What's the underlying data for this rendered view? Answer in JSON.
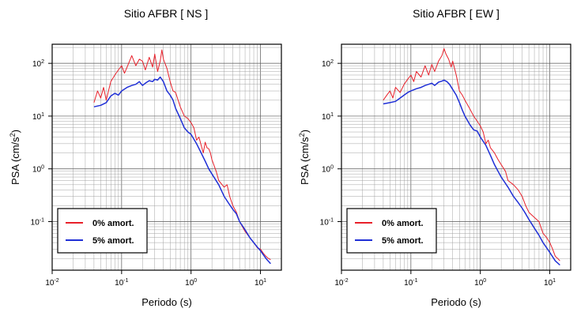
{
  "chart_data": [
    {
      "type": "line",
      "title": "Sitio AFBR [ NS ]",
      "xlabel": "Periodo (s)",
      "ylabel_main": "PSA (cm/s",
      "ylabel_sup": "2",
      "ylabel_end": ")",
      "xscale": "log",
      "yscale": "log",
      "xlim": [
        0.01,
        20
      ],
      "ylim": [
        0.012,
        230
      ],
      "grid": true,
      "legend_position": "bottom-left",
      "x_ticks": [
        {
          "base": "10",
          "exp": "-2"
        },
        {
          "base": "10",
          "exp": "-1"
        },
        {
          "base": "10",
          "exp": "0"
        },
        {
          "base": "10",
          "exp": "1"
        }
      ],
      "y_ticks": [
        {
          "base": "10",
          "exp": "-1"
        },
        {
          "base": "10",
          "exp": "0"
        },
        {
          "base": "10",
          "exp": "1"
        },
        {
          "base": "10",
          "exp": "2"
        }
      ],
      "series": [
        {
          "name": "0% amort.",
          "color": "#e8202a",
          "points": [
            [
              0.04,
              18
            ],
            [
              0.045,
              30
            ],
            [
              0.05,
              22
            ],
            [
              0.055,
              35
            ],
            [
              0.06,
              20
            ],
            [
              0.07,
              45
            ],
            [
              0.08,
              60
            ],
            [
              0.09,
              75
            ],
            [
              0.1,
              90
            ],
            [
              0.11,
              65
            ],
            [
              0.12,
              85
            ],
            [
              0.14,
              140
            ],
            [
              0.16,
              90
            ],
            [
              0.18,
              120
            ],
            [
              0.2,
              110
            ],
            [
              0.22,
              75
            ],
            [
              0.25,
              130
            ],
            [
              0.28,
              85
            ],
            [
              0.3,
              150
            ],
            [
              0.33,
              70
            ],
            [
              0.36,
              110
            ],
            [
              0.38,
              180
            ],
            [
              0.4,
              120
            ],
            [
              0.45,
              80
            ],
            [
              0.5,
              45
            ],
            [
              0.55,
              30
            ],
            [
              0.6,
              28
            ],
            [
              0.7,
              15
            ],
            [
              0.8,
              10
            ],
            [
              0.9,
              9
            ],
            [
              1.0,
              7.5
            ],
            [
              1.1,
              6.0
            ],
            [
              1.2,
              3.5
            ],
            [
              1.3,
              4.0
            ],
            [
              1.4,
              2.8
            ],
            [
              1.5,
              2.0
            ],
            [
              1.6,
              3.2
            ],
            [
              1.7,
              2.5
            ],
            [
              1.8,
              2.4
            ],
            [
              1.9,
              2.0
            ],
            [
              2.0,
              1.5
            ],
            [
              2.3,
              0.9
            ],
            [
              2.5,
              0.6
            ],
            [
              2.8,
              0.5
            ],
            [
              3.0,
              0.45
            ],
            [
              3.3,
              0.5
            ],
            [
              3.6,
              0.3
            ],
            [
              4.0,
              0.2
            ],
            [
              4.5,
              0.15
            ],
            [
              5.0,
              0.1
            ],
            [
              5.5,
              0.08
            ],
            [
              6.0,
              0.065
            ],
            [
              7.0,
              0.05
            ],
            [
              8.0,
              0.04
            ],
            [
              9.0,
              0.032
            ],
            [
              10.0,
              0.03
            ],
            [
              11.0,
              0.025
            ],
            [
              12.0,
              0.022
            ],
            [
              13.0,
              0.02
            ],
            [
              14.0,
              0.019
            ]
          ]
        },
        {
          "name": "5% amort.",
          "color": "#1f2fd6",
          "points": [
            [
              0.04,
              15
            ],
            [
              0.05,
              16
            ],
            [
              0.06,
              18
            ],
            [
              0.07,
              24
            ],
            [
              0.08,
              27
            ],
            [
              0.09,
              25
            ],
            [
              0.1,
              30
            ],
            [
              0.12,
              35
            ],
            [
              0.14,
              38
            ],
            [
              0.16,
              40
            ],
            [
              0.18,
              45
            ],
            [
              0.2,
              38
            ],
            [
              0.22,
              42
            ],
            [
              0.25,
              47
            ],
            [
              0.28,
              45
            ],
            [
              0.3,
              50
            ],
            [
              0.33,
              48
            ],
            [
              0.36,
              55
            ],
            [
              0.4,
              45
            ],
            [
              0.45,
              30
            ],
            [
              0.5,
              25
            ],
            [
              0.55,
              20
            ],
            [
              0.6,
              14
            ],
            [
              0.7,
              9
            ],
            [
              0.8,
              6.0
            ],
            [
              0.9,
              5.0
            ],
            [
              1.0,
              4.5
            ],
            [
              1.2,
              3.0
            ],
            [
              1.4,
              2.0
            ],
            [
              1.6,
              1.4
            ],
            [
              1.8,
              1.0
            ],
            [
              2.0,
              0.8
            ],
            [
              2.5,
              0.5
            ],
            [
              3.0,
              0.3
            ],
            [
              3.5,
              0.22
            ],
            [
              4.0,
              0.17
            ],
            [
              4.5,
              0.14
            ],
            [
              5.0,
              0.1
            ],
            [
              6.0,
              0.07
            ],
            [
              7.0,
              0.05
            ],
            [
              8.0,
              0.04
            ],
            [
              9.0,
              0.033
            ],
            [
              10.0,
              0.028
            ],
            [
              12.0,
              0.02
            ],
            [
              14.0,
              0.016
            ]
          ]
        }
      ]
    },
    {
      "type": "line",
      "title": "Sitio AFBR [ EW ]",
      "xlabel": "Periodo (s)",
      "ylabel_main": "PSA (cm/s",
      "ylabel_sup": "2",
      "ylabel_end": ")",
      "xscale": "log",
      "yscale": "log",
      "xlim": [
        0.01,
        20
      ],
      "ylim": [
        0.012,
        230
      ],
      "grid": true,
      "legend_position": "bottom-left",
      "x_ticks": [
        {
          "base": "10",
          "exp": "-2"
        },
        {
          "base": "10",
          "exp": "-1"
        },
        {
          "base": "10",
          "exp": "0"
        },
        {
          "base": "10",
          "exp": "1"
        }
      ],
      "y_ticks": [
        {
          "base": "10",
          "exp": "-1"
        },
        {
          "base": "10",
          "exp": "0"
        },
        {
          "base": "10",
          "exp": "1"
        },
        {
          "base": "10",
          "exp": "2"
        }
      ],
      "series": [
        {
          "name": "0% amort.",
          "color": "#e8202a",
          "points": [
            [
              0.04,
              20
            ],
            [
              0.045,
              25
            ],
            [
              0.05,
              30
            ],
            [
              0.055,
              22
            ],
            [
              0.06,
              35
            ],
            [
              0.07,
              28
            ],
            [
              0.08,
              40
            ],
            [
              0.09,
              50
            ],
            [
              0.1,
              60
            ],
            [
              0.11,
              45
            ],
            [
              0.12,
              70
            ],
            [
              0.14,
              55
            ],
            [
              0.16,
              90
            ],
            [
              0.18,
              60
            ],
            [
              0.2,
              95
            ],
            [
              0.22,
              70
            ],
            [
              0.25,
              110
            ],
            [
              0.28,
              140
            ],
            [
              0.3,
              190
            ],
            [
              0.32,
              150
            ],
            [
              0.35,
              120
            ],
            [
              0.38,
              85
            ],
            [
              0.4,
              110
            ],
            [
              0.45,
              60
            ],
            [
              0.5,
              30
            ],
            [
              0.55,
              25
            ],
            [
              0.6,
              20
            ],
            [
              0.7,
              14
            ],
            [
              0.8,
              10
            ],
            [
              0.9,
              8
            ],
            [
              1.0,
              6.5
            ],
            [
              1.1,
              5.0
            ],
            [
              1.2,
              3.0
            ],
            [
              1.3,
              3.5
            ],
            [
              1.4,
              2.5
            ],
            [
              1.6,
              2.0
            ],
            [
              1.8,
              1.5
            ],
            [
              2.0,
              1.2
            ],
            [
              2.3,
              0.9
            ],
            [
              2.5,
              0.6
            ],
            [
              3.0,
              0.5
            ],
            [
              3.5,
              0.4
            ],
            [
              4.0,
              0.3
            ],
            [
              4.5,
              0.2
            ],
            [
              5.0,
              0.15
            ],
            [
              6.0,
              0.12
            ],
            [
              7.0,
              0.1
            ],
            [
              8.0,
              0.06
            ],
            [
              9.0,
              0.05
            ],
            [
              10.0,
              0.04
            ],
            [
              11.0,
              0.03
            ],
            [
              12.0,
              0.022
            ],
            [
              13.0,
              0.02
            ],
            [
              14.0,
              0.018
            ]
          ]
        },
        {
          "name": "5% amort.",
          "color": "#1f2fd6",
          "points": [
            [
              0.04,
              17
            ],
            [
              0.05,
              18
            ],
            [
              0.06,
              19
            ],
            [
              0.07,
              22
            ],
            [
              0.08,
              25
            ],
            [
              0.09,
              28
            ],
            [
              0.1,
              30
            ],
            [
              0.12,
              33
            ],
            [
              0.14,
              35
            ],
            [
              0.16,
              38
            ],
            [
              0.18,
              40
            ],
            [
              0.2,
              42
            ],
            [
              0.22,
              38
            ],
            [
              0.25,
              44
            ],
            [
              0.28,
              46
            ],
            [
              0.3,
              48
            ],
            [
              0.33,
              45
            ],
            [
              0.36,
              40
            ],
            [
              0.4,
              32
            ],
            [
              0.45,
              25
            ],
            [
              0.5,
              18
            ],
            [
              0.55,
              13
            ],
            [
              0.6,
              10
            ],
            [
              0.7,
              7
            ],
            [
              0.8,
              5.5
            ],
            [
              0.9,
              5.2
            ],
            [
              1.0,
              4.0
            ],
            [
              1.2,
              2.8
            ],
            [
              1.4,
              1.8
            ],
            [
              1.6,
              1.2
            ],
            [
              1.8,
              0.9
            ],
            [
              2.0,
              0.7
            ],
            [
              2.5,
              0.45
            ],
            [
              3.0,
              0.3
            ],
            [
              3.5,
              0.23
            ],
            [
              4.0,
              0.18
            ],
            [
              4.5,
              0.14
            ],
            [
              5.0,
              0.11
            ],
            [
              6.0,
              0.075
            ],
            [
              7.0,
              0.055
            ],
            [
              8.0,
              0.04
            ],
            [
              9.0,
              0.032
            ],
            [
              10.0,
              0.026
            ],
            [
              12.0,
              0.018
            ],
            [
              14.0,
              0.015
            ]
          ]
        }
      ]
    }
  ]
}
